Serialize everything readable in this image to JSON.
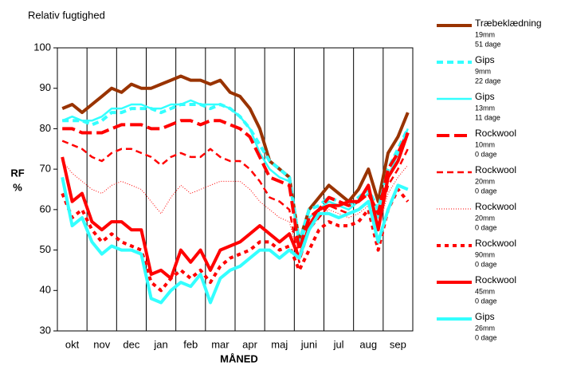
{
  "chart_data": {
    "type": "line",
    "title": "Relativ fugtighed",
    "ylabel": [
      "RF",
      "%"
    ],
    "xlabel": "MÅNED",
    "categories": [
      null,
      "okt",
      null,
      null,
      "nov",
      null,
      null,
      "dec",
      null,
      null,
      "jan",
      null,
      null,
      "feb",
      null,
      null,
      "mar",
      null,
      null,
      "apr",
      null,
      null,
      "maj",
      null,
      null,
      "juni",
      null,
      null,
      "jul",
      null,
      null,
      "aug",
      null,
      null,
      "sep",
      null
    ],
    "ylim": [
      30,
      100
    ],
    "yticks": [
      30,
      40,
      50,
      60,
      70,
      80,
      90,
      100
    ],
    "grid": true,
    "series": [
      {
        "name": "Træbeklædning",
        "thickness": "19mm",
        "days": "51 dage",
        "color": "#993300",
        "style": "solid",
        "weight": "thick",
        "values": [
          85,
          86,
          84,
          86,
          88,
          90,
          89,
          91,
          90,
          90,
          91,
          92,
          93,
          92,
          92,
          91,
          92,
          89,
          88,
          85,
          80,
          72,
          70,
          68,
          52,
          60,
          63,
          66,
          64,
          62,
          65,
          70,
          62,
          74,
          78,
          84
        ]
      },
      {
        "name": "Gips",
        "thickness": "9mm",
        "days": "22 dage",
        "color": "#33ffff",
        "style": "dashed",
        "weight": "thick",
        "values": [
          82,
          82,
          82,
          81,
          82,
          84,
          84,
          85,
          85,
          85,
          84,
          85,
          86,
          86,
          86,
          85,
          86,
          85,
          83,
          80,
          76,
          72,
          70,
          68,
          52,
          60,
          61,
          63,
          62,
          61,
          63,
          65,
          60,
          70,
          75,
          80
        ]
      },
      {
        "name": "Gips",
        "thickness": "13mm",
        "days": "11 dage",
        "color": "#33ffff",
        "style": "solid",
        "weight": "medium",
        "values": [
          82,
          83,
          82,
          82,
          83,
          85,
          85,
          86,
          86,
          85,
          85,
          86,
          86,
          87,
          86,
          86,
          86,
          85,
          83,
          80,
          74,
          70,
          68,
          67,
          51,
          58,
          60,
          62,
          61,
          60,
          62,
          64,
          58,
          68,
          74,
          80
        ]
      },
      {
        "name": "Rockwool",
        "thickness": "10mm",
        "days": "0 dage",
        "color": "#ff0000",
        "style": "longdash",
        "weight": "thick",
        "values": [
          80,
          80,
          79,
          79,
          79,
          80,
          81,
          81,
          81,
          80,
          80,
          81,
          82,
          82,
          81,
          82,
          82,
          81,
          80,
          78,
          73,
          68,
          67,
          66,
          50,
          58,
          60,
          63,
          62,
          61,
          62,
          64,
          59,
          70,
          74,
          79
        ]
      },
      {
        "name": "Rockwool",
        "thickness": "20mm",
        "days": "0 dage",
        "color": "#ff0000",
        "style": "dashed",
        "weight": "medium",
        "values": [
          77,
          76,
          75,
          73,
          72,
          74,
          75,
          75,
          74,
          73,
          71,
          73,
          74,
          73,
          73,
          75,
          73,
          72,
          72,
          70,
          67,
          63,
          62,
          60,
          47,
          55,
          58,
          61,
          60,
          59,
          60,
          62,
          56,
          66,
          70,
          75
        ]
      },
      {
        "name": "Rockwool",
        "thickness": "20mm",
        "days": "0 dage",
        "color": "#ff0000",
        "style": "dotted",
        "weight": "thin",
        "values": [
          72,
          69,
          67,
          65,
          64,
          66,
          67,
          66,
          65,
          62,
          59,
          63,
          66,
          64,
          65,
          66,
          67,
          67,
          67,
          65,
          62,
          60,
          58,
          57,
          48,
          55,
          58,
          60,
          59,
          58,
          59,
          61,
          55,
          64,
          68,
          71
        ]
      },
      {
        "name": "Rockwool",
        "thickness": "90mm",
        "days": "0 dage",
        "color": "#ff0000",
        "style": "shortdash",
        "weight": "thick",
        "values": [
          64,
          58,
          60,
          55,
          52,
          54,
          52,
          51,
          50,
          42,
          40,
          43,
          45,
          43,
          45,
          42,
          46,
          48,
          49,
          50,
          52,
          52,
          50,
          51,
          45,
          50,
          55,
          57,
          56,
          56,
          57,
          60,
          50,
          60,
          65,
          62
        ]
      },
      {
        "name": "Rockwool",
        "thickness": "45mm",
        "days": "0 dage",
        "color": "#ff0000",
        "style": "solid",
        "weight": "thick",
        "values": [
          73,
          62,
          64,
          57,
          55,
          57,
          57,
          55,
          55,
          44,
          45,
          43,
          50,
          47,
          50,
          45,
          50,
          51,
          52,
          54,
          56,
          54,
          52,
          54,
          48,
          56,
          60,
          61,
          61,
          62,
          62,
          66,
          55,
          68,
          72,
          79
        ]
      },
      {
        "name": "Gips",
        "thickness": "26mm",
        "days": "0 dage",
        "color": "#33ffff",
        "style": "solid",
        "weight": "thick",
        "values": [
          68,
          56,
          58,
          52,
          49,
          51,
          50,
          50,
          49,
          38,
          37,
          40,
          42,
          41,
          44,
          37,
          43,
          45,
          46,
          48,
          50,
          50,
          48,
          50,
          48,
          55,
          59,
          59,
          58,
          59,
          60,
          62,
          52,
          60,
          66,
          65
        ]
      }
    ]
  }
}
